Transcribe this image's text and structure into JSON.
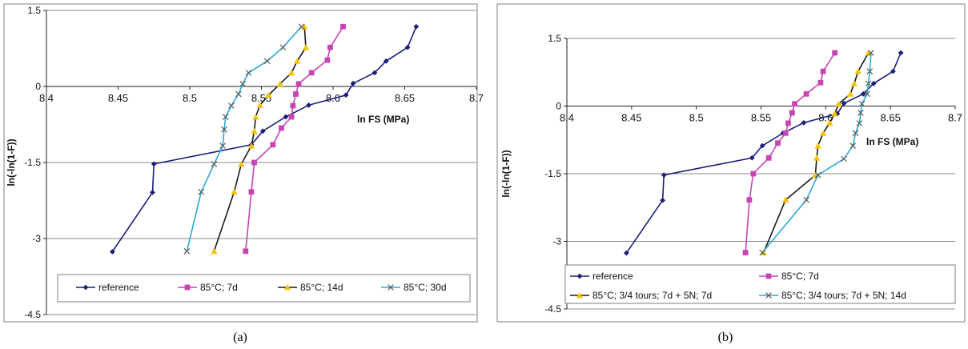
{
  "charts": [
    {
      "panel_label": "(a)",
      "color": "#1e1e1e",
      "series": [
        {
          "name": "reference",
          "color": "#1b1f7a",
          "marker": "diamond"
        },
        {
          "name": "85°C; 7d",
          "color": "#c545b4",
          "marker": "square"
        },
        {
          "name": "85°C; 14d",
          "color": "#1a1a1a",
          "marker": "triangle",
          "marker_color": "#f5c400"
        },
        {
          "name": "85°C; 30d",
          "color": "#2aa8d8",
          "marker": "x",
          "marker_color": "#5a5a5a"
        }
      ]
    },
    {
      "panel_label": "(b)",
      "series": [
        {
          "name": "reference",
          "color": "#1b1f7a",
          "marker": "diamond"
        },
        {
          "name": "85°C; 7d",
          "color": "#c545b4",
          "marker": "square"
        },
        {
          "name": "85°C; 3/4 tours; 7d + 5N; 7d",
          "color": "#1a1a1a",
          "marker": "triangle",
          "marker_color": "#f5c400"
        },
        {
          "name": "85°C; 3/4 tours; 7d + 5N; 14d",
          "color": "#2aa8d8",
          "marker": "x",
          "marker_color": "#5a5a5a"
        }
      ]
    }
  ],
  "chart_data": [
    {
      "type": "line",
      "xlabel": "ln FS (MPa)",
      "ylabel": "ln(-ln(1-F))",
      "xlim": [
        8.4,
        8.7
      ],
      "ylim": [
        -4.5,
        1.5
      ],
      "x_ticks": [
        "8.4",
        "8.45",
        "8.5",
        "8.55",
        "8.6",
        "8.65",
        "8.7"
      ],
      "y_ticks": [
        "1.5",
        "0",
        "-1.5",
        "-3",
        "-4.5"
      ],
      "grid": "horizontal",
      "legend": "bottom",
      "series": [
        {
          "name": "reference",
          "points": [
            [
              8.446,
              -3.26
            ],
            [
              8.474,
              -2.09
            ],
            [
              8.475,
              -1.53
            ],
            [
              8.543,
              -1.15
            ],
            [
              8.551,
              -0.88
            ],
            [
              8.567,
              -0.6
            ],
            [
              8.583,
              -0.37
            ],
            [
              8.609,
              -0.17
            ],
            [
              8.614,
              0.06
            ],
            [
              8.629,
              0.27
            ],
            [
              8.637,
              0.5
            ],
            [
              8.652,
              0.77
            ],
            [
              8.658,
              1.18
            ]
          ]
        },
        {
          "name": "85°C; 7d",
          "points": [
            [
              8.539,
              -3.25
            ],
            [
              8.543,
              -2.08
            ],
            [
              8.545,
              -1.5
            ],
            [
              8.558,
              -1.15
            ],
            [
              8.564,
              -0.82
            ],
            [
              8.571,
              -0.6
            ],
            [
              8.572,
              -0.38
            ],
            [
              8.574,
              -0.15
            ],
            [
              8.576,
              0.05
            ],
            [
              8.585,
              0.27
            ],
            [
              8.596,
              0.52
            ],
            [
              8.598,
              0.77
            ],
            [
              8.607,
              1.18
            ]
          ]
        },
        {
          "name": "85°C; 14d",
          "points": [
            [
              8.517,
              -3.25
            ],
            [
              8.531,
              -2.08
            ],
            [
              8.536,
              -1.53
            ],
            [
              8.543,
              -1.17
            ],
            [
              8.545,
              -0.88
            ],
            [
              8.546,
              -0.6
            ],
            [
              8.549,
              -0.37
            ],
            [
              8.555,
              -0.17
            ],
            [
              8.563,
              0.05
            ],
            [
              8.571,
              0.27
            ],
            [
              8.575,
              0.5
            ],
            [
              8.581,
              0.77
            ],
            [
              8.58,
              1.18
            ]
          ]
        },
        {
          "name": "85°C; 30d",
          "points": [
            [
              8.498,
              -3.25
            ],
            [
              8.508,
              -2.08
            ],
            [
              8.517,
              -1.53
            ],
            [
              8.523,
              -1.17
            ],
            [
              8.524,
              -0.85
            ],
            [
              8.525,
              -0.6
            ],
            [
              8.529,
              -0.38
            ],
            [
              8.534,
              -0.15
            ],
            [
              8.537,
              0.05
            ],
            [
              8.541,
              0.27
            ],
            [
              8.554,
              0.5
            ],
            [
              8.565,
              0.77
            ],
            [
              8.578,
              1.18
            ]
          ]
        }
      ]
    },
    {
      "type": "line",
      "xlabel": "ln FS (MPa)",
      "ylabel": "ln(-ln(1-F))",
      "xlim": [
        8.4,
        8.7
      ],
      "ylim": [
        -4.5,
        1.5
      ],
      "x_ticks": [
        "8.4",
        "8.45",
        "8.5",
        "8.55",
        "8.6",
        "8.65",
        "8.7"
      ],
      "y_ticks": [
        "1.5",
        "0",
        "-1.5",
        "-3",
        "-4.5"
      ],
      "grid": "horizontal",
      "legend": "bottom",
      "series": [
        {
          "name": "reference",
          "points": [
            [
              8.446,
              -3.26
            ],
            [
              8.474,
              -2.09
            ],
            [
              8.475,
              -1.53
            ],
            [
              8.543,
              -1.15
            ],
            [
              8.551,
              -0.88
            ],
            [
              8.567,
              -0.6
            ],
            [
              8.583,
              -0.37
            ],
            [
              8.609,
              -0.17
            ],
            [
              8.614,
              0.06
            ],
            [
              8.629,
              0.27
            ],
            [
              8.637,
              0.5
            ],
            [
              8.652,
              0.77
            ],
            [
              8.658,
              1.18
            ]
          ]
        },
        {
          "name": "85°C; 7d",
          "points": [
            [
              8.538,
              -3.25
            ],
            [
              8.541,
              -2.08
            ],
            [
              8.544,
              -1.5
            ],
            [
              8.556,
              -1.15
            ],
            [
              8.563,
              -0.82
            ],
            [
              8.569,
              -0.6
            ],
            [
              8.571,
              -0.38
            ],
            [
              8.574,
              -0.15
            ],
            [
              8.576,
              0.05
            ],
            [
              8.585,
              0.27
            ],
            [
              8.596,
              0.52
            ],
            [
              8.598,
              0.77
            ],
            [
              8.607,
              1.18
            ]
          ]
        },
        {
          "name": "85°C; 3/4 tours; 7d + 5N; 7d",
          "points": [
            [
              8.552,
              -3.25
            ],
            [
              8.569,
              -2.08
            ],
            [
              8.592,
              -1.53
            ],
            [
              8.593,
              -1.15
            ],
            [
              8.594,
              -0.88
            ],
            [
              8.598,
              -0.6
            ],
            [
              8.603,
              -0.37
            ],
            [
              8.607,
              -0.17
            ],
            [
              8.61,
              0.05
            ],
            [
              8.619,
              0.27
            ],
            [
              8.622,
              0.5
            ],
            [
              8.625,
              0.77
            ],
            [
              8.633,
              1.18
            ]
          ]
        },
        {
          "name": "85°C; 3/4 tours; 7d + 5N; 14d",
          "points": [
            [
              8.551,
              -3.25
            ],
            [
              8.585,
              -2.08
            ],
            [
              8.594,
              -1.53
            ],
            [
              8.614,
              -1.17
            ],
            [
              8.621,
              -0.88
            ],
            [
              8.623,
              -0.6
            ],
            [
              8.626,
              -0.38
            ],
            [
              8.627,
              -0.15
            ],
            [
              8.628,
              0.05
            ],
            [
              8.632,
              0.27
            ],
            [
              8.633,
              0.5
            ],
            [
              8.634,
              0.77
            ],
            [
              8.635,
              1.18
            ]
          ]
        }
      ]
    }
  ]
}
